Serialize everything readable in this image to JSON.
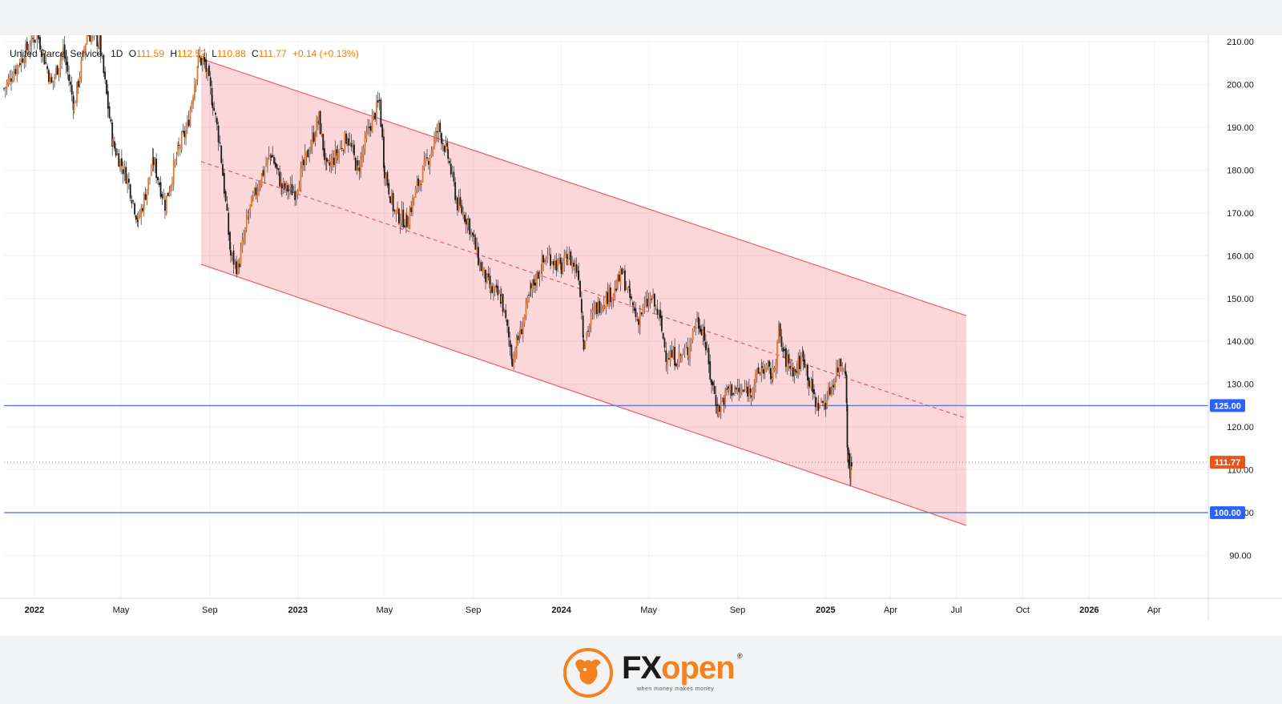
{
  "legend": {
    "symbol": "United Parcel Service",
    "interval": "1D",
    "open_label": "O",
    "open": "111.59",
    "high_label": "H",
    "high": "112.52",
    "low_label": "L",
    "low": "110.88",
    "close_label": "C",
    "close": "111.77",
    "change": "+0.14 (+0.13%)"
  },
  "chart_data": {
    "type": "candlestick",
    "ylim": [
      80,
      210
    ],
    "y_ticks": [
      90,
      100,
      110,
      120,
      130,
      140,
      150,
      160,
      170,
      180,
      190,
      200,
      210
    ],
    "y_tick_labels": [
      "90.00",
      "100.00",
      "110.00",
      "120.00",
      "130.00",
      "140.00",
      "150.00",
      "160.00",
      "170.00",
      "180.00",
      "190.00",
      "200.00",
      "210.00"
    ],
    "x_range": [
      "2021-11-20",
      "2026-06-15"
    ],
    "x_ticks": [
      {
        "date": "2022-01-01",
        "label": "2022",
        "bold": true
      },
      {
        "date": "2022-05-01",
        "label": "May",
        "bold": false
      },
      {
        "date": "2022-09-01",
        "label": "Sep",
        "bold": false
      },
      {
        "date": "2023-01-01",
        "label": "2023",
        "bold": true
      },
      {
        "date": "2023-05-01",
        "label": "May",
        "bold": false
      },
      {
        "date": "2023-09-01",
        "label": "Sep",
        "bold": false
      },
      {
        "date": "2024-01-01",
        "label": "2024",
        "bold": true
      },
      {
        "date": "2024-05-01",
        "label": "May",
        "bold": false
      },
      {
        "date": "2024-09-01",
        "label": "Sep",
        "bold": false
      },
      {
        "date": "2025-01-01",
        "label": "2025",
        "bold": true
      },
      {
        "date": "2025-04-01",
        "label": "Apr",
        "bold": false
      },
      {
        "date": "2025-07-01",
        "label": "Jul",
        "bold": false
      },
      {
        "date": "2025-10-01",
        "label": "Oct",
        "bold": false
      },
      {
        "date": "2026-01-01",
        "label": "2026",
        "bold": true
      },
      {
        "date": "2026-04-01",
        "label": "Apr",
        "bold": false
      }
    ],
    "price_path": [
      [
        "2021-11-20",
        199
      ],
      [
        "2021-12-10",
        205
      ],
      [
        "2022-01-05",
        212
      ],
      [
        "2022-01-25",
        200
      ],
      [
        "2022-02-10",
        208
      ],
      [
        "2022-02-25",
        195
      ],
      [
        "2022-03-15",
        212
      ],
      [
        "2022-04-01",
        210
      ],
      [
        "2022-04-20",
        186
      ],
      [
        "2022-05-10",
        178
      ],
      [
        "2022-05-25",
        168
      ],
      [
        "2022-06-15",
        182
      ],
      [
        "2022-07-01",
        172
      ],
      [
        "2022-07-20",
        185
      ],
      [
        "2022-08-01",
        190
      ],
      [
        "2022-08-16",
        206
      ],
      [
        "2022-08-25",
        205
      ],
      [
        "2022-09-05",
        196
      ],
      [
        "2022-09-15",
        186
      ],
      [
        "2022-09-30",
        160
      ],
      [
        "2022-10-10",
        157
      ],
      [
        "2022-10-25",
        170
      ],
      [
        "2022-11-10",
        178
      ],
      [
        "2022-11-25",
        184
      ],
      [
        "2022-12-10",
        176
      ],
      [
        "2022-12-28",
        175
      ],
      [
        "2023-01-15",
        184
      ],
      [
        "2023-01-30",
        192
      ],
      [
        "2023-02-10",
        180
      ],
      [
        "2023-02-25",
        184
      ],
      [
        "2023-03-10",
        188
      ],
      [
        "2023-03-25",
        180
      ],
      [
        "2023-04-10",
        190
      ],
      [
        "2023-04-24",
        196
      ],
      [
        "2023-05-01",
        180
      ],
      [
        "2023-05-15",
        170
      ],
      [
        "2023-06-01",
        168
      ],
      [
        "2023-06-15",
        176
      ],
      [
        "2023-07-01",
        183
      ],
      [
        "2023-07-15",
        190
      ],
      [
        "2023-07-28",
        183
      ],
      [
        "2023-08-10",
        172
      ],
      [
        "2023-08-25",
        168
      ],
      [
        "2023-09-10",
        158
      ],
      [
        "2023-09-25",
        152
      ],
      [
        "2023-10-10",
        150
      ],
      [
        "2023-10-25",
        136
      ],
      [
        "2023-11-05",
        142
      ],
      [
        "2023-11-20",
        152
      ],
      [
        "2023-12-05",
        158
      ],
      [
        "2023-12-15",
        160
      ],
      [
        "2024-01-01",
        157
      ],
      [
        "2024-01-10",
        160
      ],
      [
        "2024-01-25",
        156
      ],
      [
        "2024-02-01",
        140
      ],
      [
        "2024-02-15",
        147
      ],
      [
        "2024-03-01",
        150
      ],
      [
        "2024-03-15",
        152
      ],
      [
        "2024-03-25",
        156
      ],
      [
        "2024-04-05",
        150
      ],
      [
        "2024-04-15",
        145
      ],
      [
        "2024-04-25",
        148
      ],
      [
        "2024-05-05",
        150
      ],
      [
        "2024-05-15",
        146
      ],
      [
        "2024-05-25",
        137
      ],
      [
        "2024-06-10",
        136
      ],
      [
        "2024-06-25",
        138
      ],
      [
        "2024-07-05",
        145
      ],
      [
        "2024-07-15",
        143
      ],
      [
        "2024-07-25",
        132
      ],
      [
        "2024-08-05",
        124
      ],
      [
        "2024-08-20",
        129
      ],
      [
        "2024-09-05",
        128
      ],
      [
        "2024-09-20",
        129
      ],
      [
        "2024-10-05",
        134
      ],
      [
        "2024-10-20",
        132
      ],
      [
        "2024-10-28",
        142
      ],
      [
        "2024-11-05",
        136
      ],
      [
        "2024-11-20",
        133
      ],
      [
        "2024-12-01",
        137
      ],
      [
        "2024-12-10",
        130
      ],
      [
        "2024-12-20",
        125
      ],
      [
        "2025-01-01",
        126
      ],
      [
        "2025-01-10",
        130
      ],
      [
        "2025-01-20",
        135
      ],
      [
        "2025-01-29",
        134
      ],
      [
        "2025-01-31",
        115
      ],
      [
        "2025-02-04",
        110
      ],
      [
        "2025-02-07",
        111.77
      ]
    ],
    "channel": {
      "upper": [
        [
          "2022-08-20",
          206
        ],
        [
          "2025-07-15",
          146
        ]
      ],
      "middle": [
        [
          "2022-08-20",
          182
        ],
        [
          "2025-07-15",
          122
        ]
      ],
      "lower": [
        [
          "2022-08-20",
          158
        ],
        [
          "2025-07-15",
          97
        ]
      ]
    },
    "hlines": [
      {
        "price": 125,
        "label": "125.00"
      },
      {
        "price": 100,
        "label": "100.00"
      }
    ],
    "last_price": {
      "price": 111.77,
      "label": "111.77"
    }
  },
  "brand": {
    "name_part1": "FX",
    "name_part2": "open",
    "tagline": "when money makes money",
    "registered": "®"
  }
}
